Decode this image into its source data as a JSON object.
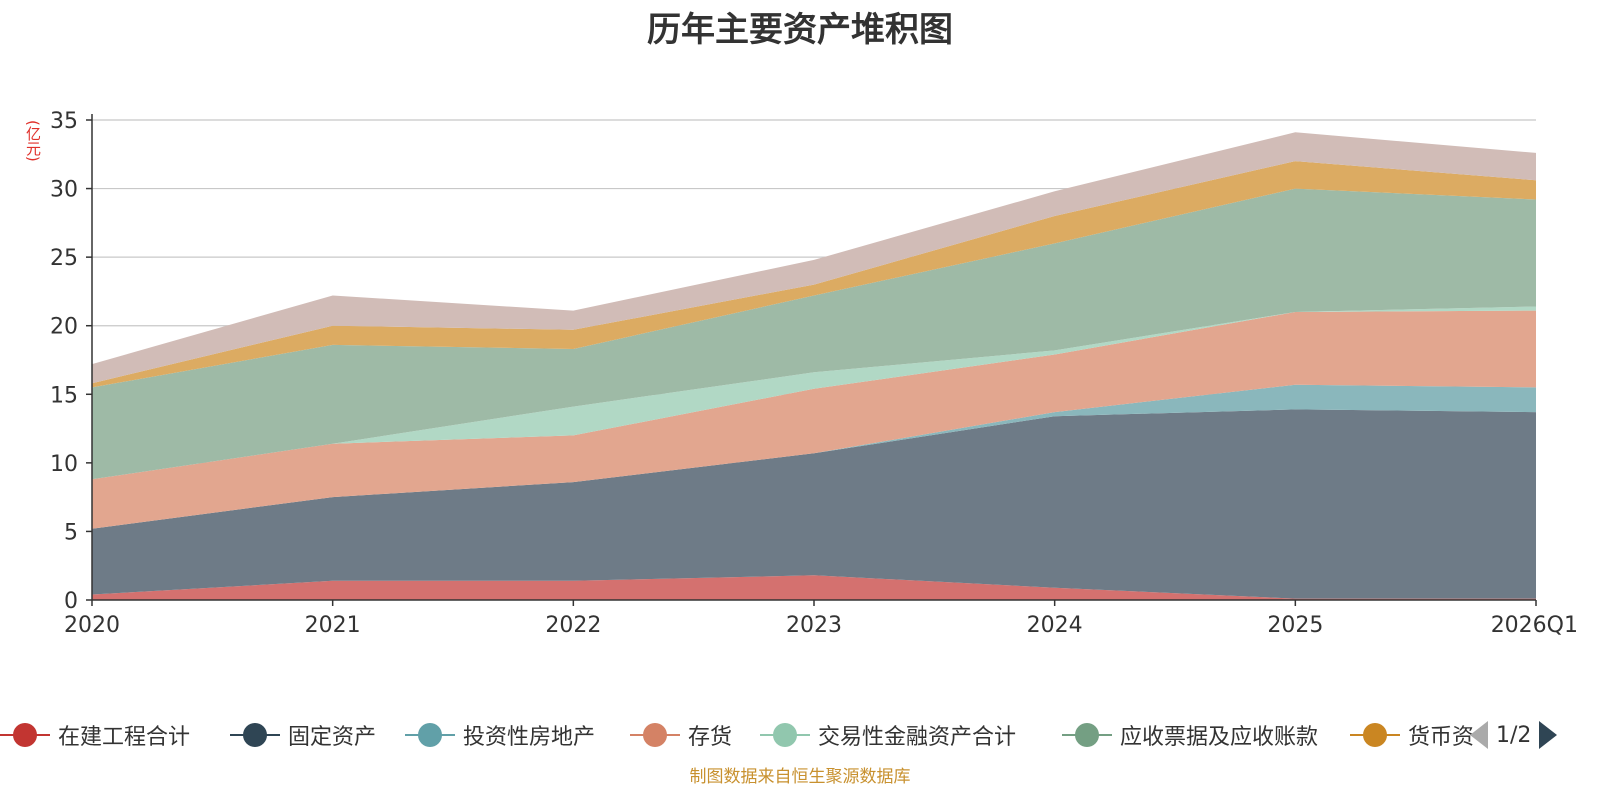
{
  "chart_data": {
    "type": "area",
    "stacked": true,
    "title": "历年主要资产堆积图",
    "ylabel": "(亿元)",
    "xlabel": "",
    "categories": [
      "2020",
      "2021",
      "2022",
      "2023",
      "2024",
      "2025",
      "2026Q1"
    ],
    "ylim": [
      0,
      35
    ],
    "yticks": [
      0,
      5,
      10,
      15,
      20,
      25,
      30,
      35
    ],
    "grid": true,
    "legend_position": "bottom",
    "series": [
      {
        "name": "在建工程合计",
        "color": "#c23531",
        "fill": "#d4716f",
        "values": [
          0.4,
          1.4,
          1.4,
          1.8,
          0.9,
          0.1,
          0.1
        ]
      },
      {
        "name": "固定资产",
        "color": "#2f4554",
        "fill": "#6e7b87",
        "values": [
          4.8,
          6.1,
          7.2,
          8.9,
          12.5,
          13.8,
          13.6
        ]
      },
      {
        "name": "投资性房地产",
        "color": "#61a0a8",
        "fill": "#8ab7bc",
        "values": [
          0.0,
          0.0,
          0.0,
          0.0,
          0.3,
          1.8,
          1.8
        ]
      },
      {
        "name": "存货",
        "color": "#d48265",
        "fill": "#e2a68f",
        "values": [
          3.6,
          3.9,
          3.4,
          4.7,
          4.2,
          5.3,
          5.6
        ]
      },
      {
        "name": "交易性金融资产合计",
        "color": "#91c7ae",
        "fill": "#b1d8c5",
        "values": [
          0.0,
          0.0,
          2.1,
          1.2,
          0.3,
          0.0,
          0.3
        ]
      },
      {
        "name": "应收票据及应收账款",
        "color": "#749f83",
        "fill": "#9ebaa6",
        "values": [
          6.7,
          7.2,
          4.2,
          5.6,
          7.8,
          9.0,
          7.8
        ]
      },
      {
        "name": "货币资",
        "color": "#ca8622",
        "fill": "#dcab62",
        "values": [
          0.3,
          1.4,
          1.4,
          0.8,
          2.0,
          2.0,
          1.4
        ]
      },
      {
        "name": "",
        "color": "#bda29a",
        "fill": "#d1bcb7",
        "values": [
          1.4,
          2.2,
          1.4,
          1.8,
          1.8,
          2.1,
          2.0
        ]
      }
    ]
  },
  "legend": {
    "items": [
      "在建工程合计",
      "固定资产",
      "投资性房地产",
      "存货",
      "交易性金融资产合计",
      "应收票据及应收账款",
      "货币资"
    ],
    "page_indicator": "1/2"
  },
  "footer": "制图数据来自恒生聚源数据库",
  "colors": {
    "ylabel": "#e0312b",
    "footer": "#c8912f",
    "grid": "#c8c8c8",
    "axis": "#333333"
  }
}
